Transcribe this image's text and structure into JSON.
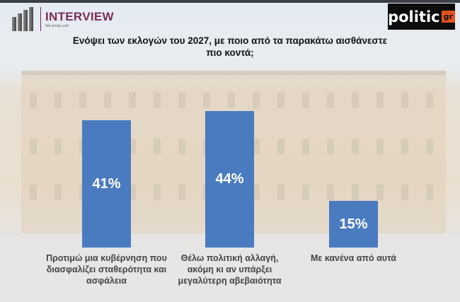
{
  "branding": {
    "left_logo": "INTERVIEW",
    "left_tagline": "We simply ask!",
    "right_logo": "politic",
    "right_logo_suffix": "gr"
  },
  "chart_data": {
    "type": "bar",
    "title": "Ενόψει των εκλογών του 2027, με ποιο από τα παρακάτω αισθάνεστε πιο κοντά;",
    "categories": [
      "Προτιμώ μια κυβέρνηση που διασφαλίζει σταθερότητα και ασφάλεια",
      "Θέλω πολιτική αλλαγή, ακόμη κι αν υπάρξει μεγαλύτερη αβεβαιότητα",
      "Με κανένα από αυτά"
    ],
    "values": [
      41,
      44,
      15
    ],
    "labels": [
      "41%",
      "44%",
      "15%"
    ],
    "xlabel": "",
    "ylabel": "",
    "ylim": [
      0,
      100
    ],
    "grid": false,
    "bar_color": "#4a7bc0"
  }
}
